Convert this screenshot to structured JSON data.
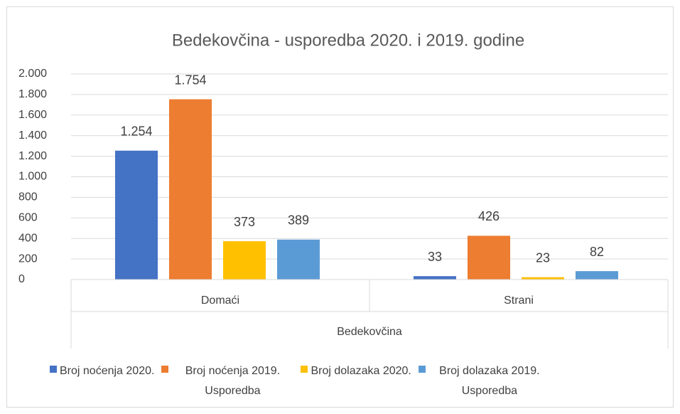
{
  "chart_data": {
    "type": "bar",
    "title": "Bedekovčina - usporedba 2020. i 2019. godine",
    "group_label": "Bedekovčina",
    "categories": [
      "Domaći",
      "Strani"
    ],
    "series": [
      {
        "name": "Broj noćenja 2020.",
        "color": "#4472c4",
        "values": [
          1254,
          33
        ],
        "value_labels": [
          "1.254",
          "33"
        ]
      },
      {
        "name": "Broj noćenja 2019. Usporedba",
        "color": "#ed7d31",
        "values": [
          1754,
          426
        ],
        "value_labels": [
          "1.754",
          "426"
        ]
      },
      {
        "name": "Broj dolazaka 2020.",
        "color": "#ffc000",
        "values": [
          373,
          23
        ],
        "value_labels": [
          "373",
          "23"
        ]
      },
      {
        "name": "Broj dolazaka 2019. Usporedba",
        "color": "#5b9bd5",
        "values": [
          389,
          82
        ],
        "value_labels": [
          "389",
          "82"
        ]
      }
    ],
    "ylim": [
      0,
      2000
    ],
    "yticks": [
      0,
      200,
      400,
      600,
      800,
      {
        "value": 1000,
        "label": "1.000"
      },
      {
        "value": 1200,
        "label": "1.200"
      },
      {
        "value": 1400,
        "label": "1.400"
      },
      {
        "value": 1600,
        "label": "1.600"
      },
      {
        "value": 1800,
        "label": "1.800"
      },
      {
        "value": 2000,
        "label": "2.000"
      }
    ],
    "grid": true,
    "legend": "bottom"
  }
}
